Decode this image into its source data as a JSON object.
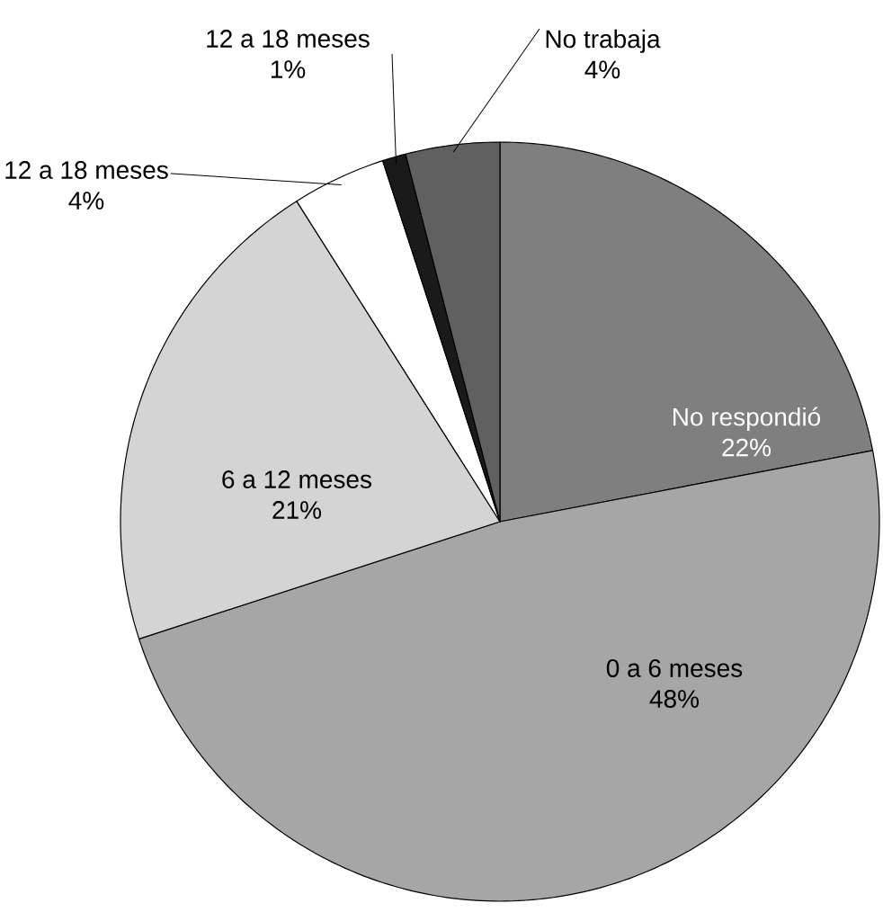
{
  "chart_data": {
    "type": "pie",
    "categories": [
      "No respondió",
      "0 a 6 meses",
      "6 a 12 meses",
      "12 a 18 meses",
      "12 a 18 meses",
      "No trabaja"
    ],
    "values": [
      22,
      48,
      21,
      4,
      1,
      4
    ],
    "value_labels": [
      "22%",
      "48%",
      "21%",
      "4%",
      "1%",
      "4%"
    ],
    "colors": [
      "#7f7f7f",
      "#a6a6a6",
      "#d4d4d4",
      "#ffffff",
      "#1a1a1a",
      "#606060"
    ]
  }
}
